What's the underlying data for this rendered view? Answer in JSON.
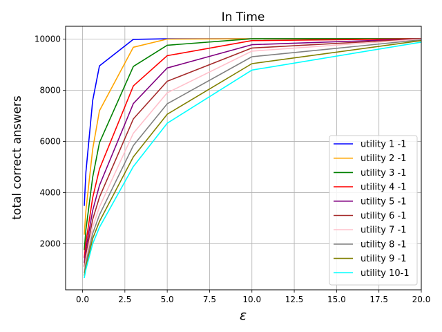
{
  "chart_data": {
    "type": "line",
    "title": "In Time",
    "xlabel": "ε",
    "ylabel": "total correct answers",
    "xlim": [
      -1.0,
      20.0
    ],
    "ylim": [
      200,
      10500
    ],
    "xticks": [
      0.0,
      2.5,
      5.0,
      7.5,
      10.0,
      12.5,
      15.0,
      17.5,
      20.0
    ],
    "xtick_labels": [
      "0.0",
      "2.5",
      "5.0",
      "7.5",
      "10.0",
      "12.5",
      "15.0",
      "17.5",
      "20.0"
    ],
    "yticks": [
      2000,
      4000,
      6000,
      8000,
      10000
    ],
    "ytick_labels": [
      "2000",
      "4000",
      "6000",
      "8000",
      "10000"
    ],
    "grid": true,
    "legend_position": "lower-right",
    "x": [
      0.1,
      0.2,
      0.6,
      1.0,
      3.0,
      5.0,
      10.0,
      20.0
    ],
    "series": [
      {
        "name": "utility 1 -1",
        "color": "#0000ff",
        "values": [
          3480,
          4800,
          7600,
          8950,
          9990,
          10010,
          10010,
          10010
        ]
      },
      {
        "name": "utility 2 -1",
        "color": "#ffa500",
        "values": [
          2350,
          3300,
          5700,
          7200,
          9680,
          10000,
          10010,
          10010
        ]
      },
      {
        "name": "utility 3 -1",
        "color": "#008000",
        "values": [
          1750,
          2550,
          4600,
          5950,
          8930,
          9760,
          10010,
          10010
        ]
      },
      {
        "name": "utility 4 -1",
        "color": "#ff0000",
        "values": [
          1450,
          2050,
          3800,
          4920,
          8170,
          9350,
          9940,
          10010
        ]
      },
      {
        "name": "utility 5 -1",
        "color": "#800080",
        "values": [
          1250,
          1800,
          3300,
          4280,
          7480,
          8870,
          9780,
          10010
        ]
      },
      {
        "name": "utility 6 -1",
        "color": "#a52a2a",
        "values": [
          1100,
          1600,
          2950,
          3820,
          6880,
          8350,
          9650,
          10010
        ]
      },
      {
        "name": "utility 7 -1",
        "color": "#ffc0cb",
        "values": [
          950,
          1400,
          2650,
          3440,
          6320,
          7900,
          9530,
          10000
        ]
      },
      {
        "name": "utility 8 -1",
        "color": "#808080",
        "values": [
          850,
          1250,
          2400,
          3130,
          5840,
          7470,
          9310,
          9970
        ]
      },
      {
        "name": "utility 9 -1",
        "color": "#808000",
        "values": [
          750,
          1100,
          2200,
          2870,
          5400,
          7060,
          9040,
          9940
        ]
      },
      {
        "name": "utility 10-1",
        "color": "#00ffff",
        "values": [
          660,
          1000,
          2000,
          2640,
          5020,
          6710,
          8790,
          9880
        ]
      }
    ]
  }
}
